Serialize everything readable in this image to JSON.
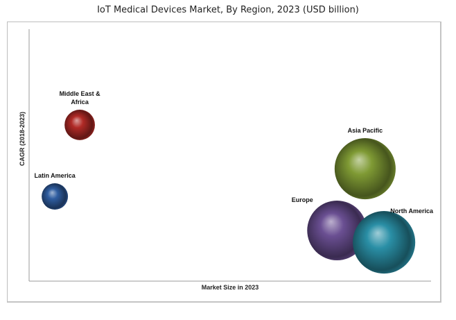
{
  "chart_data": {
    "type": "scatter",
    "subtype": "bubble",
    "title": "IoT Medical Devices Market, By Region, 2023 (USD billion)",
    "xlabel": "Market Size in 2023",
    "ylabel": "CAGR (2018-2023)",
    "xlim": [
      0,
      100
    ],
    "ylim": [
      0,
      100
    ],
    "grid": false,
    "series": [
      {
        "name": "Middle East & Africa",
        "label_lines": [
          "Middle East &",
          "Africa"
        ],
        "x": 12.6,
        "y": 62,
        "size": 4.8,
        "color": "#b02a26"
      },
      {
        "name": "Latin America",
        "label_lines": [
          "Latin America"
        ],
        "x": 6.4,
        "y": 33.6,
        "size": 3.6,
        "color": "#2f5da0"
      },
      {
        "name": "Asia Pacific",
        "label_lines": [
          "Asia Pacific"
        ],
        "x": 83.6,
        "y": 44.6,
        "size": 19.4,
        "color": "#7f9a34"
      },
      {
        "name": "Europe",
        "label_lines": [
          "Europe"
        ],
        "x": 76.6,
        "y": 20.1,
        "size": 18.5,
        "color": "#6a4f92"
      },
      {
        "name": "North America",
        "label_lines": [
          "North America"
        ],
        "x": 88.3,
        "y": 15.4,
        "size": 20.3,
        "color": "#2a8fa6"
      }
    ]
  }
}
